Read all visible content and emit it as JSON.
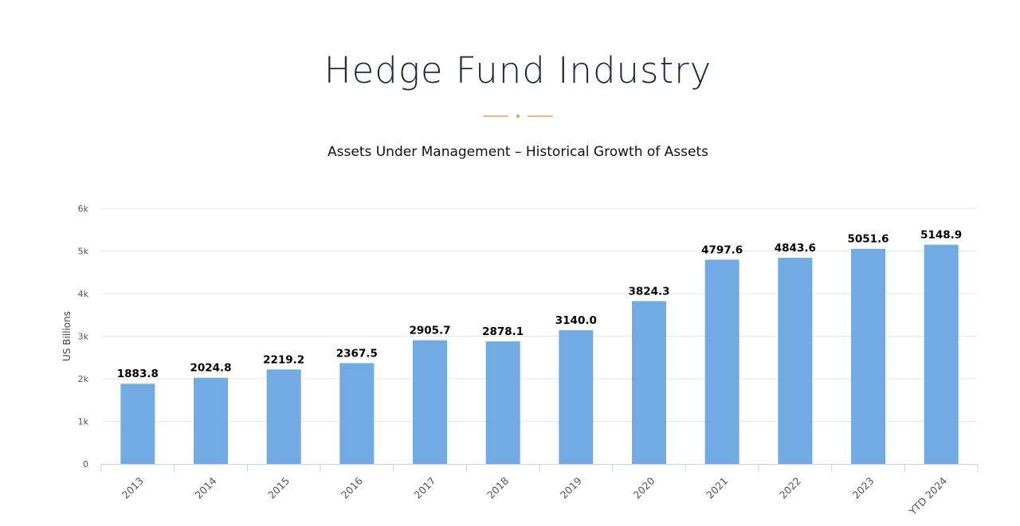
{
  "header": {
    "title": "Hedge Fund Industry",
    "accent_color": "#e8a45c"
  },
  "chart_data": {
    "type": "bar",
    "title": "Assets Under Management – Historical Growth of Assets",
    "xlabel": "",
    "ylabel": "US Billions",
    "categories": [
      "2013",
      "2014",
      "2015",
      "2016",
      "2017",
      "2018",
      "2019",
      "2020",
      "2021",
      "2022",
      "2023",
      "YTD 2024"
    ],
    "values": [
      1883.8,
      2024.8,
      2219.2,
      2367.5,
      2905.7,
      2878.1,
      3140.0,
      3824.3,
      4797.6,
      4843.6,
      5051.6,
      5148.9
    ],
    "data_labels": [
      "1883.8",
      "2024.8",
      "2219.2",
      "2367.5",
      "2905.7",
      "2878.1",
      "3140.0",
      "3824.3",
      "4797.6",
      "4843.6",
      "5051.6",
      "5148.9"
    ],
    "ylim": [
      0,
      6000
    ],
    "yticks": [
      0,
      1000,
      2000,
      3000,
      4000,
      5000,
      6000
    ],
    "ytick_labels": [
      "0",
      "1k",
      "2k",
      "3k",
      "4k",
      "5k",
      "6k"
    ],
    "grid": true,
    "legend": "none",
    "bar_color": "#72abe3",
    "grid_color": "#e3e6eb",
    "axis_color": "#c9d3e0"
  }
}
